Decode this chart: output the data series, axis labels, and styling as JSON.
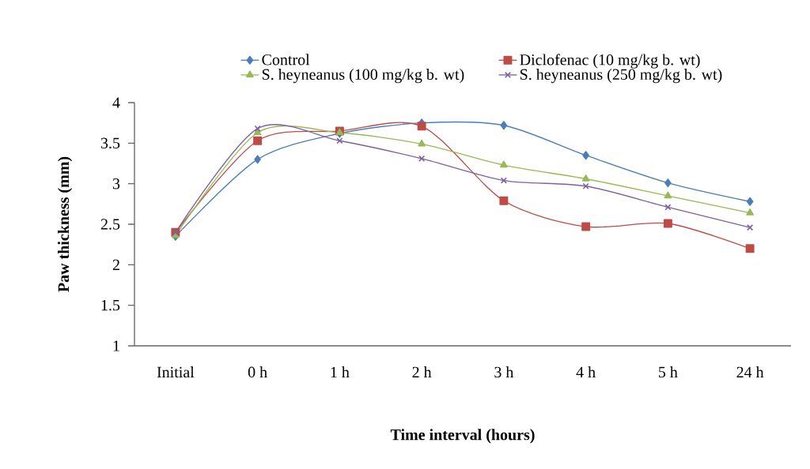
{
  "chart_data": {
    "type": "line",
    "xlabel": "Time interval (hours)",
    "ylabel": "Paw thickness (mm)",
    "categories": [
      "Initial",
      "0 h",
      "1 h",
      "2 h",
      "3 h",
      "4 h",
      "5 h",
      "24 h"
    ],
    "ylim": [
      1,
      4
    ],
    "yticks": [
      1,
      1.5,
      2,
      2.5,
      3,
      3.5,
      4
    ],
    "grid": false,
    "legend": "top",
    "line_style": "solid",
    "series": [
      {
        "name": "Control",
        "color": "#4a7ebb",
        "marker": "diamond",
        "values": [
          2.35,
          3.3,
          3.62,
          3.75,
          3.72,
          3.35,
          3.01,
          2.78
        ]
      },
      {
        "name": "Diclofenac (10 mg/kg b. wt)",
        "color": "#be4b48",
        "marker": "square",
        "values": [
          2.4,
          3.53,
          3.65,
          3.71,
          2.79,
          2.47,
          2.51,
          2.2
        ]
      },
      {
        "name": "S. heyneanus (100 mg/kg b. wt)",
        "color": "#98b954",
        "marker": "triangle",
        "values": [
          2.36,
          3.63,
          3.63,
          3.49,
          3.23,
          3.06,
          2.85,
          2.64
        ]
      },
      {
        "name": "S. heyneanus (250 mg/kg b. wt)",
        "color": "#7d60a0",
        "marker": "cross",
        "values": [
          2.4,
          3.68,
          3.53,
          3.31,
          3.04,
          2.97,
          2.71,
          2.46
        ]
      }
    ]
  }
}
